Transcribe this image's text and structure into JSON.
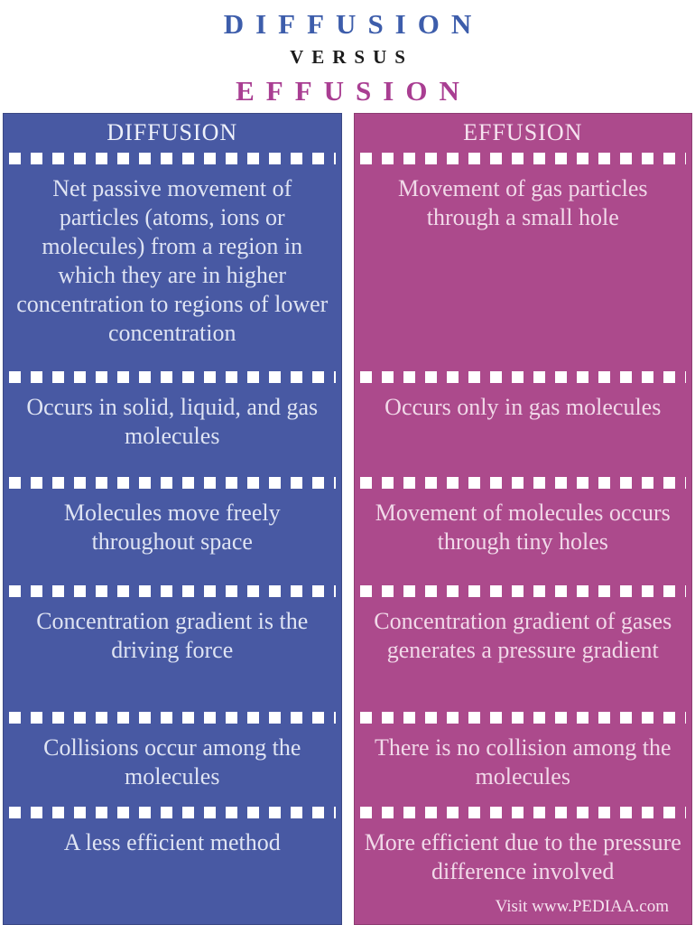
{
  "title": {
    "word1": "DIFFUSION",
    "connector": "VERSUS",
    "word2": "EFFUSION"
  },
  "table": {
    "columns": [
      {
        "header": "DIFFUSION",
        "rows": [
          "Net passive movement of particles (atoms, ions or molecules) from a region in which they are in higher concentration to regions of lower concentration",
          "Occurs in solid, liquid, and gas molecules",
          "Molecules move freely throughout space",
          "Concentration gradient is the driving force",
          "Collisions occur among the molecules",
          "A less efficient method"
        ]
      },
      {
        "header": "EFFUSION",
        "rows": [
          "Movement of gas particles through a small hole",
          "Occurs only in gas molecules",
          "Movement of molecules occurs through tiny holes",
          "Concentration gradient of gases generates a pressure gradient",
          "There is no collision among the molecules",
          "More efficient due to the pressure difference involved"
        ]
      }
    ]
  },
  "footer": {
    "credit": "Visit www.PEDIAA.com"
  },
  "colors": {
    "diffusion_column": "#4859a3",
    "effusion_column": "#ac4a8c",
    "title_diffusion": "#3d5dab",
    "title_versus": "#1b1b1b",
    "title_effusion": "#a93e92",
    "separator_dash": "#ffffff",
    "background": "#ffffff"
  }
}
